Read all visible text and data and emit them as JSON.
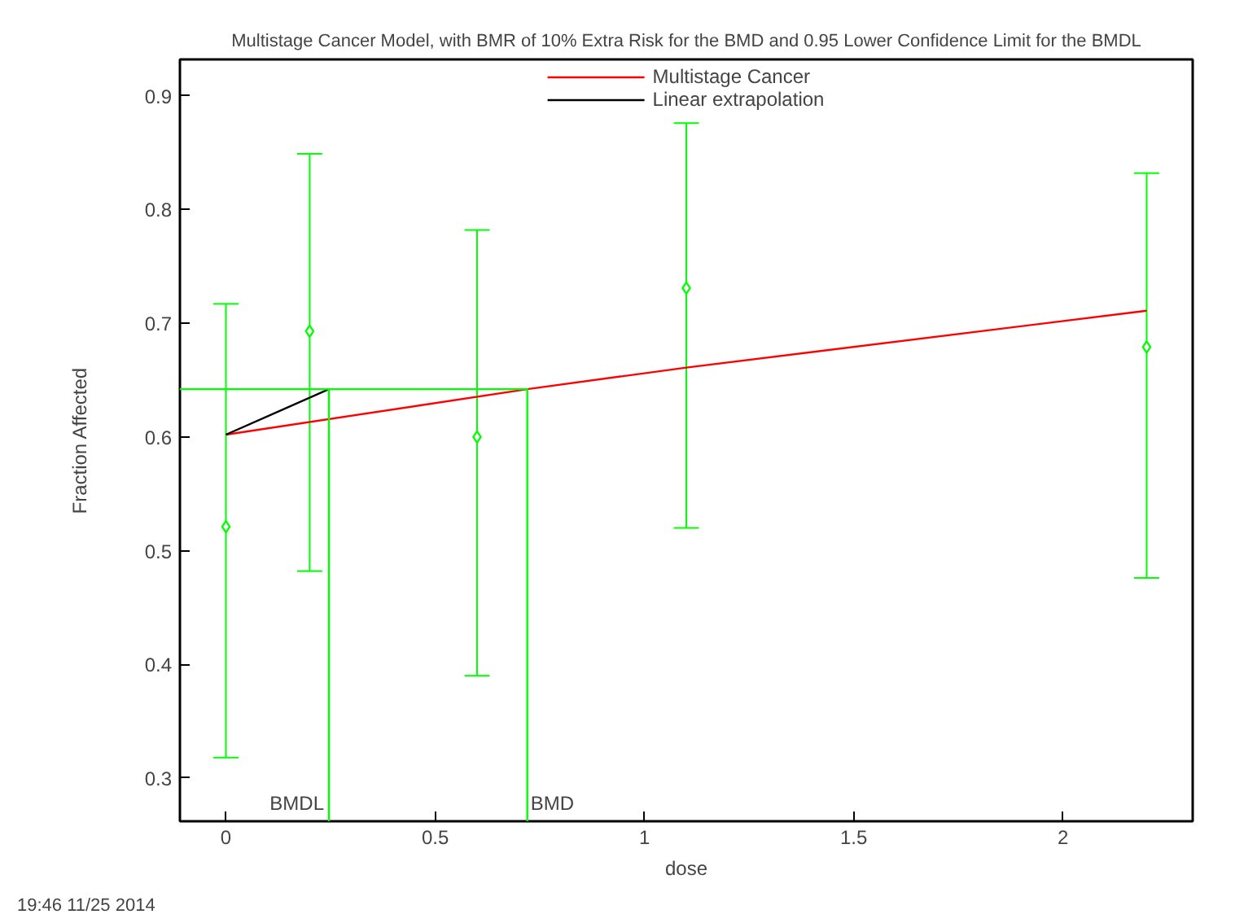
{
  "chart_data": {
    "type": "scatter",
    "title": "Multistage Cancer Model, with BMR of 10% Extra Risk for the BMD and 0.95 Lower Confidence Limit for the BMDL",
    "xlabel": "dose",
    "ylabel": "Fraction Affected",
    "xlim": [
      -0.11,
      2.31
    ],
    "xticks": [
      0,
      0.5,
      1,
      1.5,
      2
    ],
    "ylim": [
      0.262,
      0.932
    ],
    "yticks": [
      0.3,
      0.4,
      0.5,
      0.6,
      0.7,
      0.8,
      0.9
    ],
    "grid": false,
    "legend": "top",
    "series": [
      {
        "marker": "diamond",
        "color": "#00ff00",
        "x": [
          0,
          0.2,
          0.6,
          1.1,
          2.2
        ],
        "values": [
          0.521,
          0.693,
          0.6,
          0.731,
          0.679
        ],
        "errors": [
          [
            0.318,
            0.717
          ],
          [
            0.482,
            0.849
          ],
          [
            0.39,
            0.782
          ],
          [
            0.52,
            0.876
          ],
          [
            0.476,
            0.832
          ]
        ]
      },
      {
        "type": "line",
        "name": "Multistage Cancer",
        "color": "#ff0000",
        "x": [
          0,
          0.72,
          1.1,
          2.2
        ],
        "values": [
          0.602,
          0.642,
          0.661,
          0.711
        ]
      },
      {
        "type": "line",
        "name": "Linear extrapolation",
        "color": "#000000",
        "x": [
          0,
          0.246
        ],
        "values": [
          0.602,
          0.642
        ]
      },
      {
        "type": "line",
        "color": "#00ff00",
        "x": [
          -0.11,
          0.72,
          0.72
        ],
        "values": [
          0.642,
          0.642,
          0.262
        ]
      },
      {
        "type": "line",
        "color": "#00ff00",
        "x": [
          0.246,
          0.246
        ],
        "values": [
          0.642,
          0.262
        ]
      }
    ],
    "annotations": [
      {
        "text": "BMDL",
        "x": 0.246,
        "y": 0.262
      },
      {
        "text": "BMD",
        "x": 0.72,
        "y": 0.262
      },
      "19:46 11/25 2014"
    ]
  }
}
